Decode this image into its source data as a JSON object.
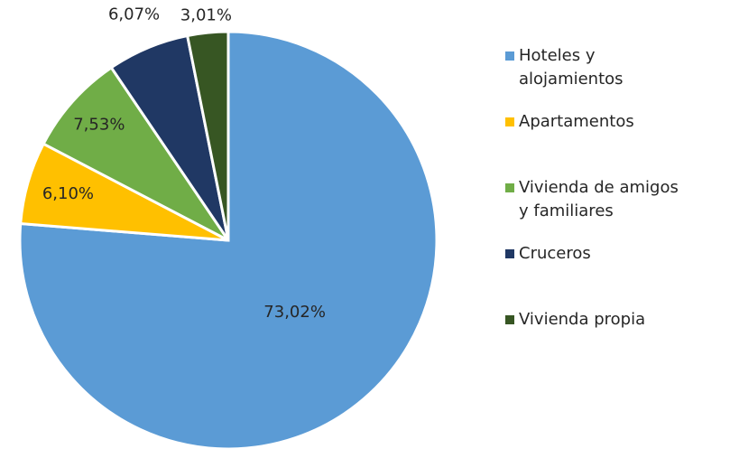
{
  "chart_data": {
    "type": "pie",
    "categories": [
      "Hoteles y alojamientos",
      "Apartamentos",
      "Vivienda de amigos y familiares",
      "Cruceros",
      "Vivienda propia"
    ],
    "values": [
      73.02,
      6.1,
      7.53,
      6.07,
      3.01
    ],
    "value_labels": [
      "73,02%",
      "6,10%",
      "7,53%",
      "6,07%",
      "3,01%"
    ],
    "colors": [
      "#5b9bd5",
      "#ffc000",
      "#70ad47",
      "#203864",
      "#375623"
    ],
    "legend": "right"
  }
}
